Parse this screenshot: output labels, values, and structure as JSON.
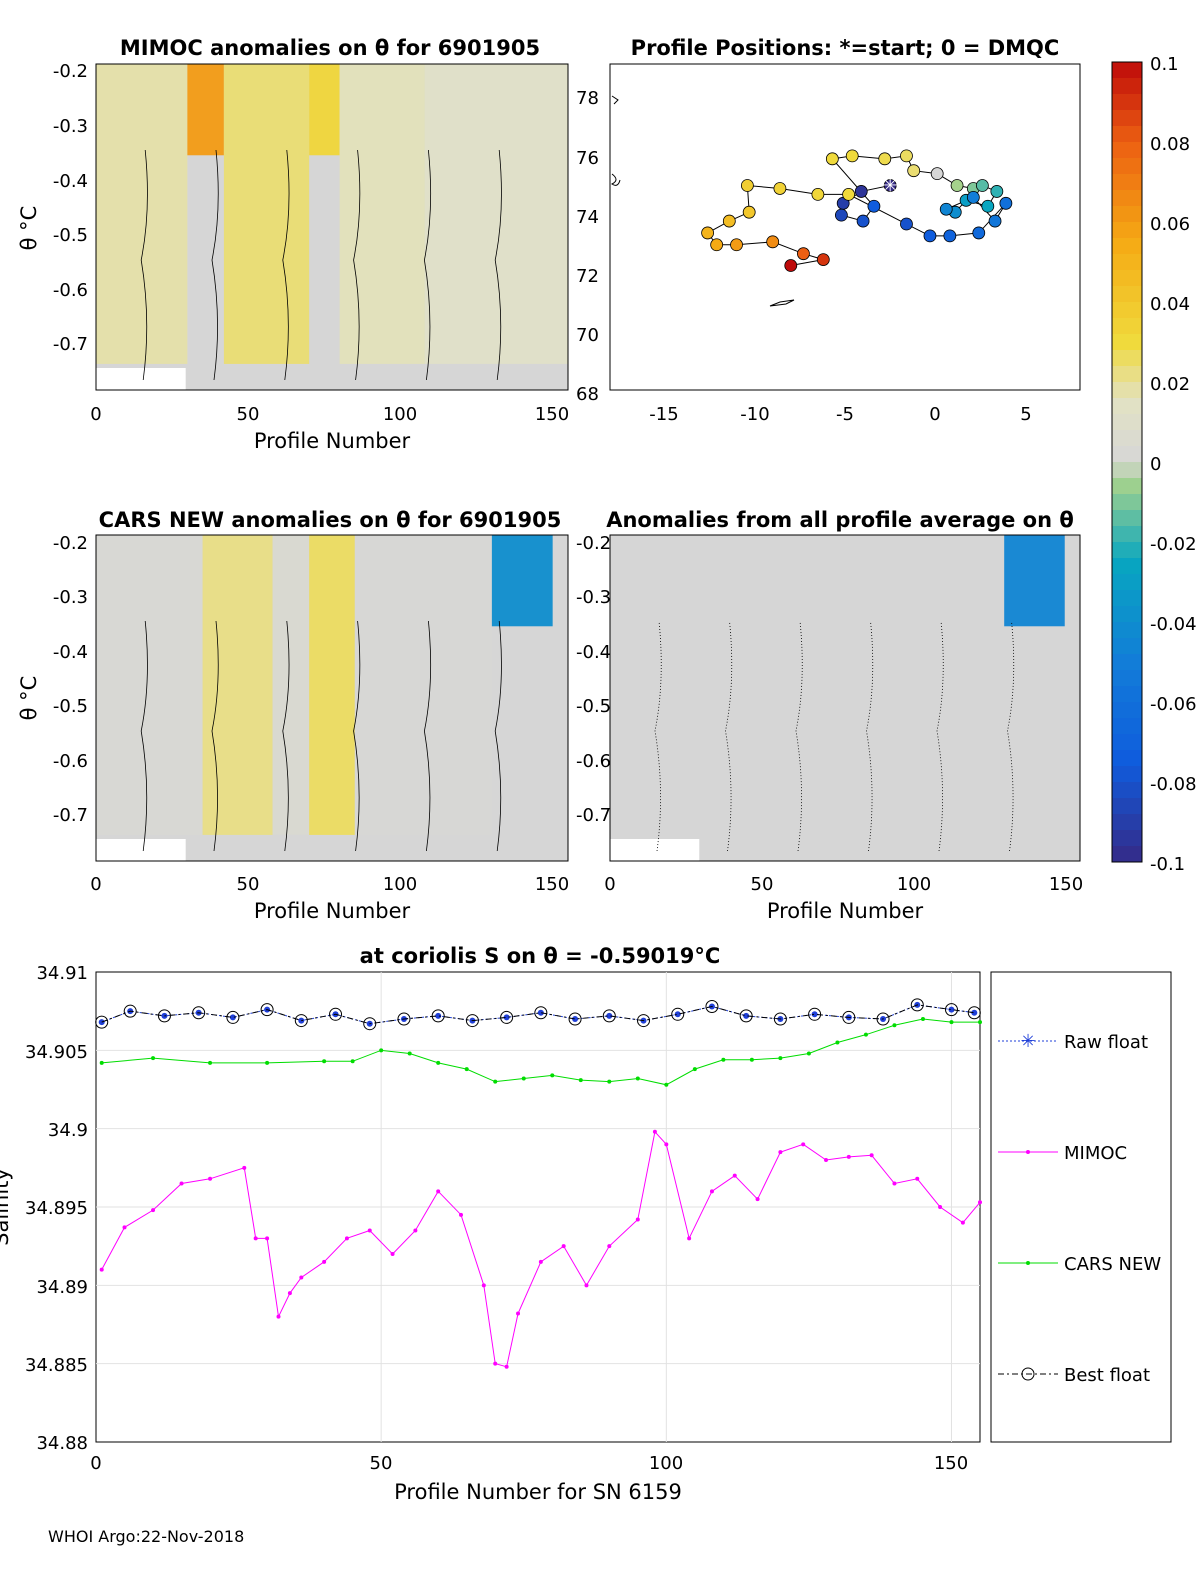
{
  "panels": {
    "mimoc": {
      "title": "MIMOC anomalies on θ  for 6901905",
      "xlabel": "Profile Number",
      "ylabel": "θ °C"
    },
    "positions": {
      "title": "Profile Positions: *=start; 0 = DMQC"
    },
    "cars": {
      "title": "CARS NEW anomalies on θ for 6901905",
      "xlabel": "Profile Number",
      "ylabel": "θ °C"
    },
    "avg": {
      "title": "Anomalies from all profile average on θ",
      "xlabel": "Profile Number"
    },
    "salinity": {
      "title": "at coriolis S on θ = -0.59019°C",
      "xlabel": "Profile Number for SN 6159",
      "ylabel": "Salinity"
    }
  },
  "ticks": {
    "profile_x": [
      "0",
      "50",
      "100",
      "150"
    ],
    "theta_y": [
      "-0.2",
      "-0.3",
      "-0.4",
      "-0.5",
      "-0.6",
      "-0.7"
    ],
    "lon_x": [
      "-15",
      "-10",
      "-5",
      "0",
      "5"
    ],
    "lat_y": [
      "78",
      "76",
      "74",
      "72",
      "70",
      "68"
    ],
    "colorbar": [
      "0.1",
      "0.08",
      "0.06",
      "0.04",
      "0.02",
      "0",
      "-0.02",
      "-0.04",
      "-0.06",
      "-0.08",
      "-0.1"
    ],
    "sal_y": [
      "34.91",
      "34.905",
      "34.9",
      "34.895",
      "34.89",
      "34.885",
      "34.88"
    ],
    "sal_x": [
      "0",
      "50",
      "100",
      "150"
    ]
  },
  "legend": {
    "raw": "Raw float",
    "mimoc": "MIMOC",
    "cars": "CARS NEW",
    "best": "Best float"
  },
  "colors": {
    "raw": "#1f3fd8",
    "mimoc": "#ff00ff",
    "cars": "#00dd00",
    "best": "#000000",
    "anomaly_zero": "#d6d6d6",
    "anomaly_pos": "#eedc5a",
    "anomaly_strong_pos": "#ef7d12",
    "anomaly_neg": "#3ea86a"
  },
  "footer": "WHOI Argo:22-Nov-2018",
  "chart_data": [
    {
      "type": "heatmap",
      "title": "MIMOC anomalies on θ  for 6901905",
      "xlabel": "Profile Number",
      "ylabel": "θ °C",
      "xlim": [
        0,
        155
      ],
      "ylim": [
        -0.79,
        -0.19
      ],
      "clim": [
        -0.1,
        0.1
      ],
      "bands": [
        {
          "x": [
            0,
            30
          ],
          "value": 0.018
        },
        {
          "x": [
            30,
            42
          ],
          "value": 0.06
        },
        {
          "x": [
            42,
            70
          ],
          "value": 0.024
        },
        {
          "x": [
            70,
            80
          ],
          "value": 0.032
        },
        {
          "x": [
            80,
            108
          ],
          "value": 0.016
        },
        {
          "x": [
            108,
            155
          ],
          "value": 0.012
        }
      ]
    },
    {
      "type": "scatter",
      "title": "Profile Positions: *=start; 0 = DMQC",
      "xlim": [
        -18,
        8
      ],
      "ylim": [
        68,
        79
      ],
      "x": [
        -2.5,
        -4.1,
        -5.1,
        -5.2,
        -4.0,
        -3.4,
        -5.7,
        -4.6,
        -2.8,
        -1.6,
        -1.2,
        0.1,
        1.2,
        2.1,
        2.6,
        3.4,
        2.9,
        1.7,
        1.1,
        0.6,
        2.1,
        3.3,
        3.9,
        2.4,
        0.8,
        -0.3,
        -1.6,
        -4.8,
        -6.5,
        -8.6,
        -10.4,
        -10.3,
        -11.4,
        -12.6,
        -12.1,
        -11.0,
        -9.0,
        -7.3,
        -6.2,
        -8.0
      ],
      "y": [
        74.9,
        74.7,
        74.3,
        73.9,
        73.7,
        74.2,
        75.8,
        75.9,
        75.8,
        75.9,
        75.4,
        75.3,
        74.9,
        74.8,
        74.9,
        74.7,
        74.2,
        74.4,
        74.0,
        74.1,
        74.5,
        73.7,
        74.3,
        73.3,
        73.2,
        73.2,
        73.6,
        74.6,
        74.6,
        74.8,
        74.9,
        74.0,
        73.7,
        73.3,
        72.9,
        72.9,
        73.0,
        72.6,
        72.4,
        72.2
      ],
      "value": [
        -0.1,
        -0.095,
        -0.09,
        -0.085,
        -0.08,
        -0.075,
        0.03,
        0.03,
        0.028,
        0.026,
        0.024,
        0.0,
        -0.005,
        -0.01,
        -0.015,
        -0.02,
        -0.025,
        -0.03,
        -0.04,
        -0.045,
        -0.05,
        -0.055,
        -0.06,
        -0.065,
        -0.07,
        -0.075,
        -0.08,
        0.03,
        0.032,
        0.034,
        0.036,
        0.04,
        0.045,
        0.05,
        0.055,
        0.06,
        0.065,
        0.08,
        0.09,
        0.1
      ]
    },
    {
      "type": "heatmap",
      "title": "CARS NEW anomalies on θ for 6901905",
      "xlabel": "Profile Number",
      "ylabel": "θ °C",
      "xlim": [
        0,
        155
      ],
      "ylim": [
        -0.79,
        -0.19
      ],
      "clim": [
        -0.1,
        0.1
      ],
      "bands": [
        {
          "x": [
            0,
            35
          ],
          "value": 0.002
        },
        {
          "x": [
            35,
            58
          ],
          "value": 0.022
        },
        {
          "x": [
            58,
            70
          ],
          "value": 0.004
        },
        {
          "x": [
            70,
            85
          ],
          "value": 0.026
        },
        {
          "x": [
            85,
            130
          ],
          "value": 0.001
        },
        {
          "x": [
            130,
            150
          ],
          "value": -0.04
        },
        {
          "x": [
            150,
            155
          ],
          "value": 0.0
        }
      ]
    },
    {
      "type": "heatmap",
      "title": "Anomalies from all profile average on θ",
      "xlabel": "Profile Number",
      "xlim": [
        0,
        155
      ],
      "ylim": [
        -0.79,
        -0.19
      ],
      "clim": [
        -0.1,
        0.1
      ],
      "bands": [
        {
          "x": [
            0,
            130
          ],
          "value": 0.0
        },
        {
          "x": [
            130,
            150
          ],
          "value": -0.045
        },
        {
          "x": [
            150,
            155
          ],
          "value": 0.0
        }
      ]
    },
    {
      "type": "line",
      "title": "at coriolis S on θ = -0.59019°C",
      "xlabel": "Profile Number for SN 6159",
      "ylabel": "Salinity",
      "xlim": [
        0,
        155
      ],
      "ylim": [
        34.88,
        34.91
      ],
      "series": [
        {
          "name": "Raw float",
          "x": [
            1,
            6,
            12,
            18,
            24,
            30,
            36,
            42,
            48,
            54,
            60,
            66,
            72,
            78,
            84,
            90,
            96,
            102,
            108,
            114,
            120,
            126,
            132,
            138,
            144,
            150,
            154
          ],
          "y": [
            34.9068,
            34.9075,
            34.9072,
            34.9074,
            34.9071,
            34.9076,
            34.9069,
            34.9073,
            34.9067,
            34.907,
            34.9072,
            34.9069,
            34.9071,
            34.9074,
            34.907,
            34.9072,
            34.9069,
            34.9073,
            34.9078,
            34.9072,
            34.907,
            34.9073,
            34.9071,
            34.907,
            34.9079,
            34.9076,
            34.9074
          ]
        },
        {
          "name": "MIMOC",
          "x": [
            1,
            5,
            10,
            15,
            20,
            26,
            28,
            30,
            32,
            34,
            36,
            40,
            44,
            48,
            52,
            56,
            60,
            64,
            68,
            70,
            72,
            74,
            78,
            82,
            86,
            90,
            95,
            98,
            100,
            104,
            108,
            112,
            116,
            120,
            124,
            128,
            132,
            136,
            140,
            144,
            148,
            152,
            155
          ],
          "y": [
            34.891,
            34.8937,
            34.8948,
            34.8965,
            34.8968,
            34.8975,
            34.893,
            34.893,
            34.888,
            34.8895,
            34.8905,
            34.8915,
            34.893,
            34.8935,
            34.892,
            34.8935,
            34.896,
            34.8945,
            34.89,
            34.885,
            34.8848,
            34.8882,
            34.8915,
            34.8925,
            34.89,
            34.8925,
            34.8942,
            34.8998,
            34.899,
            34.893,
            34.896,
            34.897,
            34.8955,
            34.8985,
            34.899,
            34.898,
            34.8982,
            34.8983,
            34.8965,
            34.8968,
            34.895,
            34.894,
            34.8953
          ]
        },
        {
          "name": "CARS NEW",
          "x": [
            1,
            10,
            20,
            30,
            40,
            45,
            50,
            55,
            60,
            65,
            70,
            75,
            80,
            85,
            90,
            95,
            100,
            105,
            110,
            115,
            120,
            125,
            130,
            135,
            140,
            145,
            150,
            155
          ],
          "y": [
            34.9042,
            34.9045,
            34.9042,
            34.9042,
            34.9043,
            34.9043,
            34.905,
            34.9048,
            34.9042,
            34.9038,
            34.903,
            34.9032,
            34.9034,
            34.9031,
            34.903,
            34.9032,
            34.9028,
            34.9038,
            34.9044,
            34.9044,
            34.9045,
            34.9048,
            34.9055,
            34.906,
            34.9066,
            34.907,
            34.9068,
            34.9068
          ]
        },
        {
          "name": "Best float",
          "x": [
            1,
            6,
            12,
            18,
            24,
            30,
            36,
            42,
            48,
            54,
            60,
            66,
            72,
            78,
            84,
            90,
            96,
            102,
            108,
            114,
            120,
            126,
            132,
            138,
            144,
            150,
            154
          ],
          "y": [
            34.9068,
            34.9075,
            34.9072,
            34.9074,
            34.9071,
            34.9076,
            34.9069,
            34.9073,
            34.9067,
            34.907,
            34.9072,
            34.9069,
            34.9071,
            34.9074,
            34.907,
            34.9072,
            34.9069,
            34.9073,
            34.9078,
            34.9072,
            34.907,
            34.9073,
            34.9071,
            34.907,
            34.9079,
            34.9076,
            34.9074
          ]
        }
      ]
    }
  ]
}
